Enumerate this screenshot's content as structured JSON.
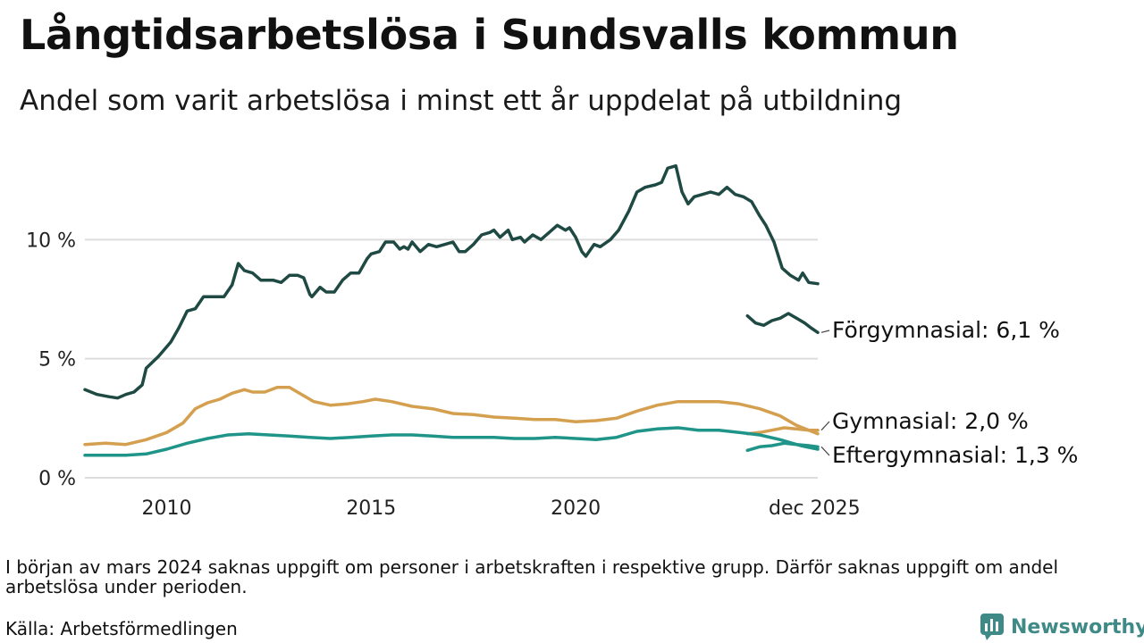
{
  "header": {
    "title": "Långtidsarbetslösa i Sundsvalls kommun",
    "subtitle": "Andel som varit arbetslösa i minst ett år uppdelat på utbildning"
  },
  "footer": {
    "note": "I början av mars 2024 saknas uppgift om personer i arbetskraften i respektive grupp. Därför saknas uppgift om andel arbetslösa under perioden.",
    "source": "Källa: Arbetsförmedlingen",
    "brand": "Newsworthy"
  },
  "colors": {
    "forgymnasial": "#1f4a44",
    "gymnasial": "#d4a04f",
    "eftergymnasial": "#1f9488",
    "grid": "#dddddd",
    "brand": "#3f8a86"
  },
  "chart_data": {
    "type": "line",
    "title": "Långtidsarbetslösa i Sundsvalls kommun",
    "subtitle": "Andel som varit arbetslösa i minst ett år uppdelat på utbildning",
    "xlabel": "",
    "ylabel": "",
    "xlim": [
      2008.0,
      2025.92
    ],
    "ylim": [
      0,
      13.5
    ],
    "x_ticks": [
      {
        "value": 2010,
        "label": "2010"
      },
      {
        "value": 2015,
        "label": "2015"
      },
      {
        "value": 2020,
        "label": "2020"
      },
      {
        "value": 2025.92,
        "label": "dec 2025"
      }
    ],
    "y_ticks": [
      {
        "value": 0,
        "label": "0 %"
      },
      {
        "value": 5,
        "label": "5 %"
      },
      {
        "value": 10,
        "label": "10 %"
      }
    ],
    "gap": {
      "from": 2023.7,
      "to": 2024.2
    },
    "series": [
      {
        "name": "Förgymnasial",
        "label": "Förgymnasial: 6,1 %",
        "color_key": "forgymnasial",
        "points": [
          [
            2008.0,
            3.7
          ],
          [
            2008.3,
            3.5
          ],
          [
            2008.6,
            3.4
          ],
          [
            2008.8,
            3.35
          ],
          [
            2009.0,
            3.5
          ],
          [
            2009.2,
            3.6
          ],
          [
            2009.4,
            3.9
          ],
          [
            2009.5,
            4.6
          ],
          [
            2009.8,
            5.1
          ],
          [
            2010.1,
            5.7
          ],
          [
            2010.3,
            6.3
          ],
          [
            2010.5,
            7.0
          ],
          [
            2010.7,
            7.1
          ],
          [
            2010.9,
            7.6
          ],
          [
            2011.2,
            7.6
          ],
          [
            2011.4,
            7.6
          ],
          [
            2011.6,
            8.1
          ],
          [
            2011.75,
            9.0
          ],
          [
            2011.9,
            8.7
          ],
          [
            2012.1,
            8.6
          ],
          [
            2012.3,
            8.3
          ],
          [
            2012.6,
            8.3
          ],
          [
            2012.8,
            8.2
          ],
          [
            2013.0,
            8.5
          ],
          [
            2013.2,
            8.5
          ],
          [
            2013.35,
            8.4
          ],
          [
            2013.5,
            7.7
          ],
          [
            2013.55,
            7.6
          ],
          [
            2013.75,
            8.0
          ],
          [
            2013.9,
            7.8
          ],
          [
            2014.1,
            7.8
          ],
          [
            2014.3,
            8.3
          ],
          [
            2014.5,
            8.6
          ],
          [
            2014.7,
            8.6
          ],
          [
            2014.9,
            9.2
          ],
          [
            2015.0,
            9.4
          ],
          [
            2015.2,
            9.5
          ],
          [
            2015.35,
            9.9
          ],
          [
            2015.55,
            9.9
          ],
          [
            2015.7,
            9.6
          ],
          [
            2015.8,
            9.7
          ],
          [
            2015.9,
            9.6
          ],
          [
            2016.0,
            9.9
          ],
          [
            2016.2,
            9.5
          ],
          [
            2016.4,
            9.8
          ],
          [
            2016.6,
            9.7
          ],
          [
            2016.8,
            9.8
          ],
          [
            2017.0,
            9.9
          ],
          [
            2017.15,
            9.5
          ],
          [
            2017.3,
            9.5
          ],
          [
            2017.5,
            9.8
          ],
          [
            2017.7,
            10.2
          ],
          [
            2017.9,
            10.3
          ],
          [
            2018.0,
            10.4
          ],
          [
            2018.15,
            10.1
          ],
          [
            2018.35,
            10.4
          ],
          [
            2018.45,
            10.0
          ],
          [
            2018.65,
            10.1
          ],
          [
            2018.75,
            9.9
          ],
          [
            2018.95,
            10.2
          ],
          [
            2019.15,
            10.0
          ],
          [
            2019.35,
            10.3
          ],
          [
            2019.55,
            10.6
          ],
          [
            2019.75,
            10.4
          ],
          [
            2019.85,
            10.5
          ],
          [
            2020.0,
            10.1
          ],
          [
            2020.15,
            9.5
          ],
          [
            2020.25,
            9.3
          ],
          [
            2020.45,
            9.8
          ],
          [
            2020.6,
            9.7
          ],
          [
            2020.85,
            10.0
          ],
          [
            2021.05,
            10.4
          ],
          [
            2021.3,
            11.2
          ],
          [
            2021.5,
            12.0
          ],
          [
            2021.7,
            12.2
          ],
          [
            2021.95,
            12.3
          ],
          [
            2022.1,
            12.4
          ],
          [
            2022.25,
            13.0
          ],
          [
            2022.45,
            13.1
          ],
          [
            2022.6,
            12.0
          ],
          [
            2022.75,
            11.5
          ],
          [
            2022.9,
            11.8
          ],
          [
            2023.1,
            11.9
          ],
          [
            2023.3,
            12.0
          ],
          [
            2023.5,
            11.9
          ],
          [
            2023.7,
            12.2
          ],
          [
            2023.9,
            11.9
          ],
          [
            2024.1,
            11.8
          ],
          [
            2024.3,
            11.6
          ],
          [
            2024.5,
            11.0
          ],
          [
            2024.65,
            10.6
          ],
          [
            2024.85,
            9.9
          ],
          [
            2025.05,
            8.8
          ],
          [
            2025.25,
            8.5
          ],
          [
            2025.45,
            8.3
          ],
          [
            2025.55,
            8.6
          ],
          [
            2025.7,
            8.2
          ],
          [
            2025.92,
            8.15
          ]
        ]
      },
      {
        "name": "Gymnasial",
        "label": "Gymnasial: 2,0 %",
        "color_key": "gymnasial",
        "points": [
          [
            2008.0,
            1.4
          ],
          [
            2008.5,
            1.45
          ],
          [
            2009.0,
            1.4
          ],
          [
            2009.5,
            1.6
          ],
          [
            2010.0,
            1.9
          ],
          [
            2010.4,
            2.3
          ],
          [
            2010.7,
            2.9
          ],
          [
            2011.0,
            3.15
          ],
          [
            2011.3,
            3.3
          ],
          [
            2011.6,
            3.55
          ],
          [
            2011.9,
            3.7
          ],
          [
            2012.1,
            3.6
          ],
          [
            2012.4,
            3.6
          ],
          [
            2012.7,
            3.8
          ],
          [
            2013.0,
            3.8
          ],
          [
            2013.3,
            3.5
          ],
          [
            2013.6,
            3.2
          ],
          [
            2014.0,
            3.05
          ],
          [
            2014.4,
            3.1
          ],
          [
            2014.8,
            3.2
          ],
          [
            2015.1,
            3.3
          ],
          [
            2015.5,
            3.2
          ],
          [
            2016.0,
            3.0
          ],
          [
            2016.5,
            2.9
          ],
          [
            2017.0,
            2.7
          ],
          [
            2017.5,
            2.65
          ],
          [
            2018.0,
            2.55
          ],
          [
            2018.5,
            2.5
          ],
          [
            2019.0,
            2.45
          ],
          [
            2019.5,
            2.45
          ],
          [
            2020.0,
            2.35
          ],
          [
            2020.5,
            2.4
          ],
          [
            2021.0,
            2.5
          ],
          [
            2021.5,
            2.8
          ],
          [
            2022.0,
            3.05
          ],
          [
            2022.5,
            3.2
          ],
          [
            2023.0,
            3.2
          ],
          [
            2023.5,
            3.2
          ],
          [
            2024.0,
            3.1
          ],
          [
            2024.5,
            2.9
          ],
          [
            2025.0,
            2.6
          ],
          [
            2025.4,
            2.2
          ],
          [
            2025.92,
            1.85
          ]
        ]
      },
      {
        "name": "Eftergymnasial",
        "label": "Eftergymnasial: 1,3 %",
        "color_key": "eftergymnasial",
        "points": [
          [
            2008.0,
            0.95
          ],
          [
            2008.5,
            0.95
          ],
          [
            2009.0,
            0.95
          ],
          [
            2009.5,
            1.0
          ],
          [
            2010.0,
            1.2
          ],
          [
            2010.5,
            1.45
          ],
          [
            2011.0,
            1.65
          ],
          [
            2011.5,
            1.8
          ],
          [
            2012.0,
            1.85
          ],
          [
            2012.5,
            1.8
          ],
          [
            2013.0,
            1.75
          ],
          [
            2013.5,
            1.7
          ],
          [
            2014.0,
            1.65
          ],
          [
            2014.5,
            1.7
          ],
          [
            2015.0,
            1.75
          ],
          [
            2015.5,
            1.8
          ],
          [
            2016.0,
            1.8
          ],
          [
            2016.5,
            1.75
          ],
          [
            2017.0,
            1.7
          ],
          [
            2017.5,
            1.7
          ],
          [
            2018.0,
            1.7
          ],
          [
            2018.5,
            1.65
          ],
          [
            2019.0,
            1.65
          ],
          [
            2019.5,
            1.7
          ],
          [
            2020.0,
            1.65
          ],
          [
            2020.5,
            1.6
          ],
          [
            2021.0,
            1.7
          ],
          [
            2021.5,
            1.95
          ],
          [
            2022.0,
            2.05
          ],
          [
            2022.5,
            2.1
          ],
          [
            2023.0,
            2.0
          ],
          [
            2023.5,
            2.0
          ],
          [
            2024.0,
            1.9
          ],
          [
            2024.5,
            1.8
          ],
          [
            2025.0,
            1.6
          ],
          [
            2025.5,
            1.35
          ],
          [
            2025.92,
            1.2
          ]
        ]
      }
    ],
    "series_after_gap": {
      "Förgymnasial": [
        [
          2024.2,
          6.8
        ],
        [
          2024.4,
          6.5
        ],
        [
          2024.6,
          6.4
        ],
        [
          2024.8,
          6.6
        ],
        [
          2025.0,
          6.7
        ],
        [
          2025.2,
          6.9
        ],
        [
          2025.4,
          6.7
        ],
        [
          2025.6,
          6.5
        ],
        [
          2025.75,
          6.3
        ],
        [
          2025.92,
          6.1
        ]
      ],
      "Gymnasial": [
        [
          2024.2,
          1.85
        ],
        [
          2024.5,
          1.9
        ],
        [
          2024.8,
          2.0
        ],
        [
          2025.1,
          2.1
        ],
        [
          2025.4,
          2.05
        ],
        [
          2025.7,
          2.0
        ],
        [
          2025.92,
          2.0
        ]
      ],
      "Eftergymnasial": [
        [
          2024.2,
          1.15
        ],
        [
          2024.5,
          1.3
        ],
        [
          2024.8,
          1.35
        ],
        [
          2025.1,
          1.45
        ],
        [
          2025.4,
          1.4
        ],
        [
          2025.7,
          1.35
        ],
        [
          2025.92,
          1.3
        ]
      ]
    }
  }
}
